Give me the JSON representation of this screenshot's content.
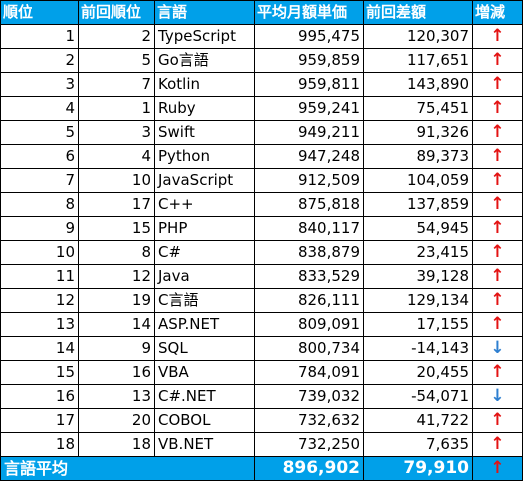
{
  "headers": [
    "順位",
    "前回順位",
    "言語",
    "平均月額単価",
    "前回差額",
    "増減"
  ],
  "rows": [
    {
      "rank": "1",
      "prev": "2",
      "lang": "TypeScript",
      "avg": "995,475",
      "diff": "120,307",
      "trend": "↑",
      "dir": "up"
    },
    {
      "rank": "2",
      "prev": "5",
      "lang": "Go言語",
      "avg": "959,859",
      "diff": "117,651",
      "trend": "↑",
      "dir": "up"
    },
    {
      "rank": "3",
      "prev": "7",
      "lang": "Kotlin",
      "avg": "959,811",
      "diff": "143,890",
      "trend": "↑",
      "dir": "up"
    },
    {
      "rank": "4",
      "prev": "1",
      "lang": "Ruby",
      "avg": "959,241",
      "diff": "75,451",
      "trend": "↑",
      "dir": "up"
    },
    {
      "rank": "5",
      "prev": "3",
      "lang": "Swift",
      "avg": "949,211",
      "diff": "91,326",
      "trend": "↑",
      "dir": "up"
    },
    {
      "rank": "6",
      "prev": "4",
      "lang": "Python",
      "avg": "947,248",
      "diff": "89,373",
      "trend": "↑",
      "dir": "up"
    },
    {
      "rank": "7",
      "prev": "10",
      "lang": "JavaScript",
      "avg": "912,509",
      "diff": "104,059",
      "trend": "↑",
      "dir": "up"
    },
    {
      "rank": "8",
      "prev": "17",
      "lang": "C++",
      "avg": "875,818",
      "diff": "137,859",
      "trend": "↑",
      "dir": "up"
    },
    {
      "rank": "9",
      "prev": "15",
      "lang": "PHP",
      "avg": "840,117",
      "diff": "54,945",
      "trend": "↑",
      "dir": "up"
    },
    {
      "rank": "10",
      "prev": "8",
      "lang": "C#",
      "avg": "838,879",
      "diff": "23,415",
      "trend": "↑",
      "dir": "up"
    },
    {
      "rank": "11",
      "prev": "12",
      "lang": "Java",
      "avg": "833,529",
      "diff": "39,128",
      "trend": "↑",
      "dir": "up"
    },
    {
      "rank": "12",
      "prev": "19",
      "lang": "C言語",
      "avg": "826,111",
      "diff": "129,134",
      "trend": "↑",
      "dir": "up"
    },
    {
      "rank": "13",
      "prev": "14",
      "lang": "ASP.NET",
      "avg": "809,091",
      "diff": "17,155",
      "trend": "↑",
      "dir": "up"
    },
    {
      "rank": "14",
      "prev": "9",
      "lang": "SQL",
      "avg": "800,734",
      "diff": "-14,143",
      "trend": "↓",
      "dir": "down"
    },
    {
      "rank": "15",
      "prev": "16",
      "lang": "VBA",
      "avg": "784,091",
      "diff": "20,455",
      "trend": "↑",
      "dir": "up"
    },
    {
      "rank": "16",
      "prev": "13",
      "lang": "C#.NET",
      "avg": "739,032",
      "diff": "-54,071",
      "trend": "↓",
      "dir": "down"
    },
    {
      "rank": "17",
      "prev": "20",
      "lang": "COBOL",
      "avg": "732,632",
      "diff": "41,722",
      "trend": "↑",
      "dir": "up"
    },
    {
      "rank": "18",
      "prev": "18",
      "lang": "VB.NET",
      "avg": "732,250",
      "diff": "7,635",
      "trend": "↑",
      "dir": "up"
    }
  ],
  "footer": {
    "label": "言語平均",
    "avg": "896,902",
    "diff": "79,910",
    "trend": "↑",
    "dir": "up"
  },
  "colors": {
    "header_bg": "#00a0e9",
    "up": "#e31313",
    "down": "#2e7fd0"
  }
}
